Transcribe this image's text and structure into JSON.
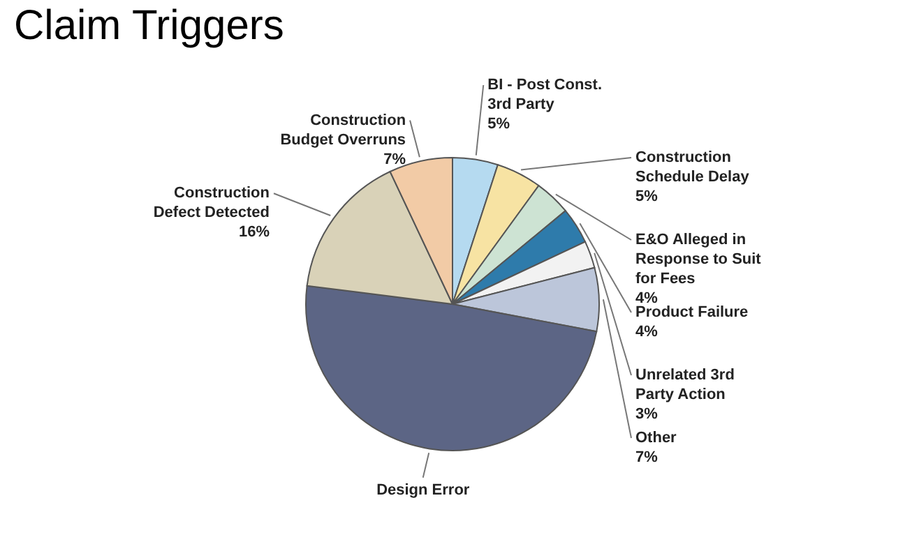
{
  "chart_data": {
    "type": "pie",
    "title": "Claim Triggers",
    "categories": [
      "BI - Post Const. 3rd Party",
      "Construction Schedule Delay",
      "E&O Alleged in Response to Suit for Fees",
      "Product Failure",
      "Unrelated 3rd Party Action",
      "Other",
      "Design Error",
      "Construction Defect Detected",
      "Construction Budget Overruns"
    ],
    "values": [
      5,
      5,
      4,
      4,
      3,
      7,
      49,
      16,
      7
    ],
    "value_labels": [
      "5%",
      "5%",
      "4%",
      "4%",
      "3%",
      "7%",
      null,
      "16%",
      "7%"
    ],
    "colors": [
      "#b5daf0",
      "#f7e3a3",
      "#cde3d3",
      "#2e7bab",
      "#f2f2f2",
      "#bcc6da",
      "#5c6585",
      "#d9d2b8",
      "#f2cba6"
    ]
  }
}
